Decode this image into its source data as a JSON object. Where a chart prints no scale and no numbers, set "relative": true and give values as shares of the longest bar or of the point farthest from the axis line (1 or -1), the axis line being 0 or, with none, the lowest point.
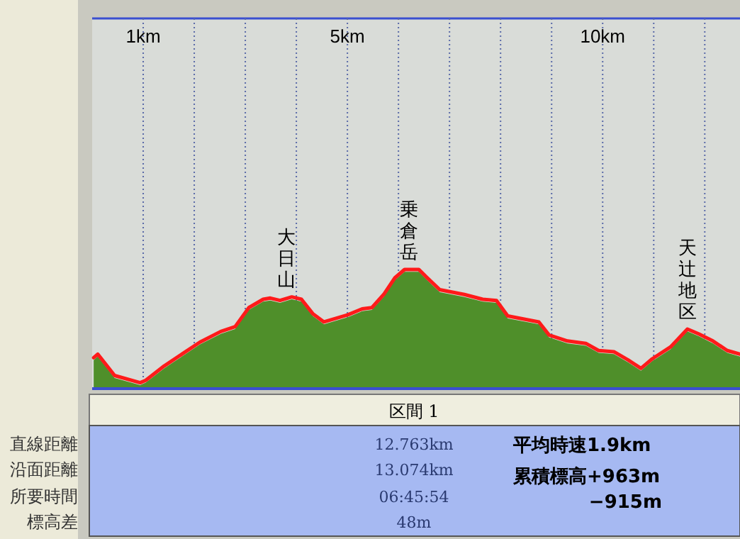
{
  "chart_data": [
    {
      "type": "area",
      "relative": true,
      "grid": "x",
      "xlim": [
        0,
        12.69
      ],
      "xticks": [
        {
          "value": 1,
          "label": "1km"
        },
        {
          "value": 2,
          "label": null
        },
        {
          "value": 3,
          "label": null
        },
        {
          "value": 4,
          "label": null
        },
        {
          "value": 5,
          "label": "5km"
        },
        {
          "value": 6,
          "label": null
        },
        {
          "value": 7,
          "label": null
        },
        {
          "value": 8,
          "label": null
        },
        {
          "value": 9,
          "label": null
        },
        {
          "value": 10,
          "label": "10km"
        },
        {
          "value": 11,
          "label": null
        },
        {
          "value": 12,
          "label": null
        }
      ],
      "x": [
        0.03,
        0.11,
        0.44,
        0.94,
        1.05,
        1.41,
        2.11,
        2.52,
        2.8,
        3.07,
        3.35,
        3.49,
        3.68,
        3.91,
        4.1,
        4.32,
        4.54,
        5.01,
        5.29,
        5.48,
        5.71,
        5.93,
        6.12,
        6.4,
        6.54,
        6.81,
        7.29,
        7.65,
        7.92,
        8.14,
        8.75,
        8.95,
        9.31,
        9.67,
        9.92,
        10.22,
        10.5,
        10.75,
        10.97,
        11.33,
        11.66,
        11.88,
        12.16,
        12.44,
        12.69
      ],
      "series": [
        {
          "type": "area",
          "color": "#4f8f2a",
          "values": [
            0.24,
            0.27,
            0.09,
            0.03,
            0.05,
            0.17,
            0.37,
            0.46,
            0.5,
            0.66,
            0.73,
            0.74,
            0.72,
            0.75,
            0.73,
            0.61,
            0.54,
            0.6,
            0.65,
            0.66,
            0.77,
            0.91,
            0.98,
            0.98,
            0.92,
            0.81,
            0.77,
            0.73,
            0.72,
            0.59,
            0.54,
            0.43,
            0.38,
            0.36,
            0.3,
            0.29,
            0.22,
            0.15,
            0.23,
            0.33,
            0.48,
            0.44,
            0.38,
            0.3,
            0.27
          ]
        },
        {
          "type": "line",
          "color": "#ff1a1a",
          "values": [
            0.26,
            0.29,
            0.11,
            0.05,
            0.07,
            0.19,
            0.39,
            0.48,
            0.52,
            0.68,
            0.75,
            0.76,
            0.74,
            0.77,
            0.75,
            0.63,
            0.56,
            0.62,
            0.67,
            0.68,
            0.79,
            0.93,
            1,
            1,
            0.94,
            0.83,
            0.79,
            0.75,
            0.74,
            0.61,
            0.56,
            0.45,
            0.4,
            0.38,
            0.32,
            0.31,
            0.24,
            0.17,
            0.25,
            0.35,
            0.5,
            0.46,
            0.4,
            0.32,
            0.29
          ]
        }
      ],
      "annotations": [
        {
          "text": "大日山",
          "x": 3.8,
          "y": 0.77
        },
        {
          "text": "乗倉岳",
          "x": 6.2,
          "y": 1
        },
        {
          "text": "天辻地区",
          "x": 11.66,
          "y": 0.5
        }
      ]
    },
    {
      "type": "other",
      "title": "区間 1",
      "annotations": [
        "直線距離",
        "沿面距離",
        "所要時間",
        "標高差",
        "12.763km",
        "13.074km",
        "06:45:54",
        "48m",
        "平均時速1.9km",
        "累積標高+963m",
        "−915m"
      ]
    }
  ]
}
